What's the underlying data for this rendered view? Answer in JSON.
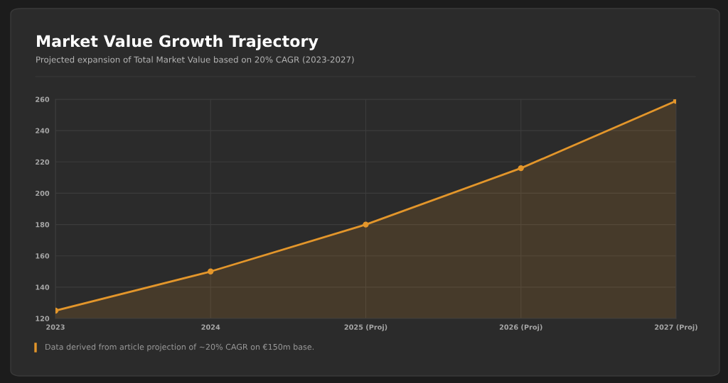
{
  "chart_data": {
    "type": "area",
    "title": "Market Value Growth Trajectory",
    "subtitle": "Projected expansion of Total Market Value based on 20% CAGR (2023-2027)",
    "categories": [
      "2023",
      "2024",
      "2025 (Proj)",
      "2026 (Proj)",
      "2027 (Proj)"
    ],
    "series": [
      {
        "color": "#e3962b",
        "values": [
          125,
          150,
          180,
          216,
          259
        ]
      }
    ],
    "ylim": [
      120,
      260
    ],
    "yticks": [
      120,
      140,
      160,
      180,
      200,
      220,
      240,
      260
    ],
    "grid": true,
    "marker": "circle",
    "line_style": "solid",
    "annotations": [
      "Data derived from article projection of ~20% CAGR on €150m base."
    ]
  }
}
